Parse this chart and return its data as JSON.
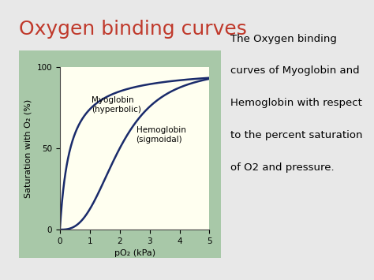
{
  "title": "Oxygen binding curves",
  "title_color": "#c0392b",
  "title_fontsize": 18,
  "xlabel": "pO₂ (kPa)",
  "ylabel": "Saturation with O₂ (%)",
  "xlim": [
    0,
    5
  ],
  "ylim": [
    0,
    100
  ],
  "xticks": [
    0,
    1,
    2,
    3,
    4,
    5
  ],
  "yticks": [
    0,
    50,
    100
  ],
  "plot_bg_color": "#fffff0",
  "outer_bg_color": "#a8c8a8",
  "page_bg_color": "#e8e8e8",
  "curve_color": "#1a2b6b",
  "myoglobin_label": "Myoglobin\n(hyperbolic)",
  "hemoglobin_label": "Hemoglobin\n(sigmoidal)",
  "annotation_lines": [
    "The Oxygen binding",
    "curves of Myoglobin and",
    "Hemoglobin with respect",
    "to the percent saturation",
    "of O2 and pressure."
  ],
  "annotation_fontsize": 9.5,
  "curve_lw": 1.8,
  "label_fontsize": 7.5,
  "axis_label_fontsize": 8,
  "tick_fontsize": 7.5
}
